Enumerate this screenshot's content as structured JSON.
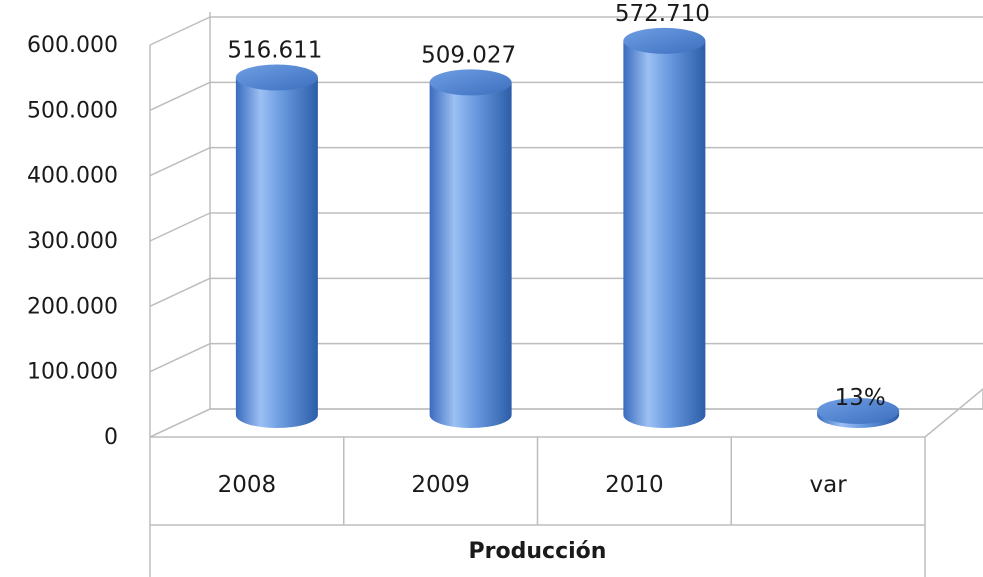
{
  "chart_data": {
    "type": "bar",
    "categories": [
      "2008",
      "2009",
      "2010",
      "var"
    ],
    "values": [
      516611,
      509027,
      572710,
      13
    ],
    "data_labels": [
      "516.611",
      "509.027",
      "572.710",
      "13%"
    ],
    "xlabel": "Producción",
    "ylabel": "",
    "title": "",
    "ylim": [
      0,
      600000
    ],
    "yticks": [
      0,
      100000,
      200000,
      300000,
      400000,
      500000,
      600000
    ],
    "ytick_labels": [
      "0",
      "100.000",
      "200.000",
      "300.000",
      "400.000",
      "500.000",
      "600.000"
    ],
    "grid": true,
    "style": "3d-cylinder",
    "colors": {
      "bar_light": "#9cc0f4",
      "bar_mid": "#5a8ad6",
      "bar_dark": "#2c5ea8",
      "grid": "#bdbdbd",
      "text": "#1a1a1a"
    }
  }
}
